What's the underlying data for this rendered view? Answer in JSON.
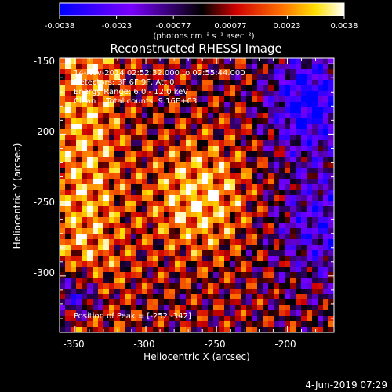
{
  "colorbar": {
    "ticks": [
      "-0.0038",
      "-0.0023",
      "-0.00077",
      "0.00077",
      "0.0023",
      "0.0038"
    ],
    "unit_label": "(photons cm⁻² s⁻¹ asec⁻²)",
    "vmin": -0.0038,
    "vmax": 0.0038
  },
  "chart_data": {
    "type": "heatmap",
    "title": "Reconstructed RHESSI Image",
    "xlabel": "Heliocentric X (arcsec)",
    "ylabel": "Heliocentric Y (arcsec)",
    "xlim": [
      -361,
      -167
    ],
    "ylim": [
      -340,
      -146
    ],
    "xticks": [
      -350,
      -300,
      -250,
      -200
    ],
    "yticks": [
      -150,
      -200,
      -250,
      -300
    ],
    "peak_position": [
      -252,
      -342
    ],
    "annotations": [
      "14-Nov-2014 02:52:32.000 to 02:55:44.000",
      "Detectors: 3F 6F 9F, Att 0",
      "Energy Range: 6.0 - 12.0 keV",
      "Clean    Total counts: 9.16E+03"
    ],
    "peak_label": "Position of Peak = [-252,-342]",
    "colormap": "blue-purple-red-yellow-white"
  },
  "footer": {
    "date": "4-Jun-2019 07:29"
  }
}
